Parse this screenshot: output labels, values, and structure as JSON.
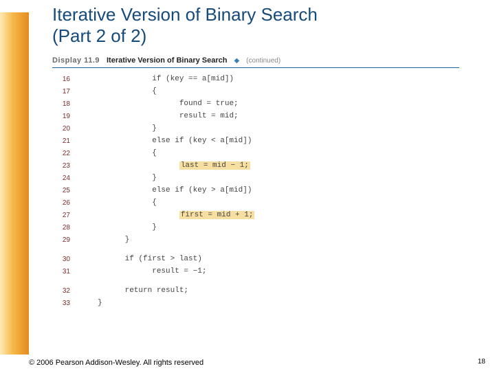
{
  "title_line1": "Iterative Version of Binary Search",
  "title_line2": "(Part 2 of 2)",
  "display": {
    "label": "Display 11.9",
    "name": "Iterative Version of Binary Search",
    "continued": "(continued)"
  },
  "code": {
    "lines": [
      {
        "n": "16",
        "indent": "            ",
        "segs": [
          {
            "t": "if (key == a[mid])"
          }
        ]
      },
      {
        "n": "17",
        "indent": "            ",
        "segs": [
          {
            "t": "{"
          }
        ]
      },
      {
        "n": "18",
        "indent": "                  ",
        "segs": [
          {
            "t": "found = true;"
          }
        ]
      },
      {
        "n": "19",
        "indent": "                  ",
        "segs": [
          {
            "t": "result = mid;"
          }
        ]
      },
      {
        "n": "20",
        "indent": "            ",
        "segs": [
          {
            "t": "}"
          }
        ]
      },
      {
        "n": "21",
        "indent": "            ",
        "segs": [
          {
            "t": "else if (key < a[mid])"
          }
        ]
      },
      {
        "n": "22",
        "indent": "            ",
        "segs": [
          {
            "t": "{"
          }
        ]
      },
      {
        "n": "23",
        "indent": "                  ",
        "segs": [
          {
            "t": "last = mid − 1;",
            "hl": true
          }
        ]
      },
      {
        "n": "24",
        "indent": "            ",
        "segs": [
          {
            "t": "}"
          }
        ]
      },
      {
        "n": "25",
        "indent": "            ",
        "segs": [
          {
            "t": "else if (key > a[mid])"
          }
        ]
      },
      {
        "n": "26",
        "indent": "            ",
        "segs": [
          {
            "t": "{"
          }
        ]
      },
      {
        "n": "27",
        "indent": "                  ",
        "segs": [
          {
            "t": "first = mid + 1;",
            "hl": true
          }
        ]
      },
      {
        "n": "28",
        "indent": "            ",
        "segs": [
          {
            "t": "}"
          }
        ]
      },
      {
        "n": "29",
        "indent": "      ",
        "segs": [
          {
            "t": "}"
          }
        ]
      },
      {
        "gap": true
      },
      {
        "n": "30",
        "indent": "      ",
        "segs": [
          {
            "t": "if (first > last)"
          }
        ]
      },
      {
        "n": "31",
        "indent": "            ",
        "segs": [
          {
            "t": "result = −1;"
          }
        ]
      },
      {
        "gap": true
      },
      {
        "n": "32",
        "indent": "      ",
        "segs": [
          {
            "t": "return result;"
          }
        ]
      },
      {
        "n": "33",
        "indent": "",
        "segs": [
          {
            "t": "}"
          }
        ]
      }
    ]
  },
  "footer": "© 2006 Pearson Addison-Wesley. All rights reserved",
  "pagenum": "18",
  "colors": {
    "title": "#164a7a",
    "rule": "#1e5fa0",
    "line_no": "#7a2a2a",
    "highlight_bg": "#f6dfa0",
    "sidebar_gradient": [
      "#ffe9b8",
      "#f5b847",
      "#e58a1f"
    ]
  }
}
